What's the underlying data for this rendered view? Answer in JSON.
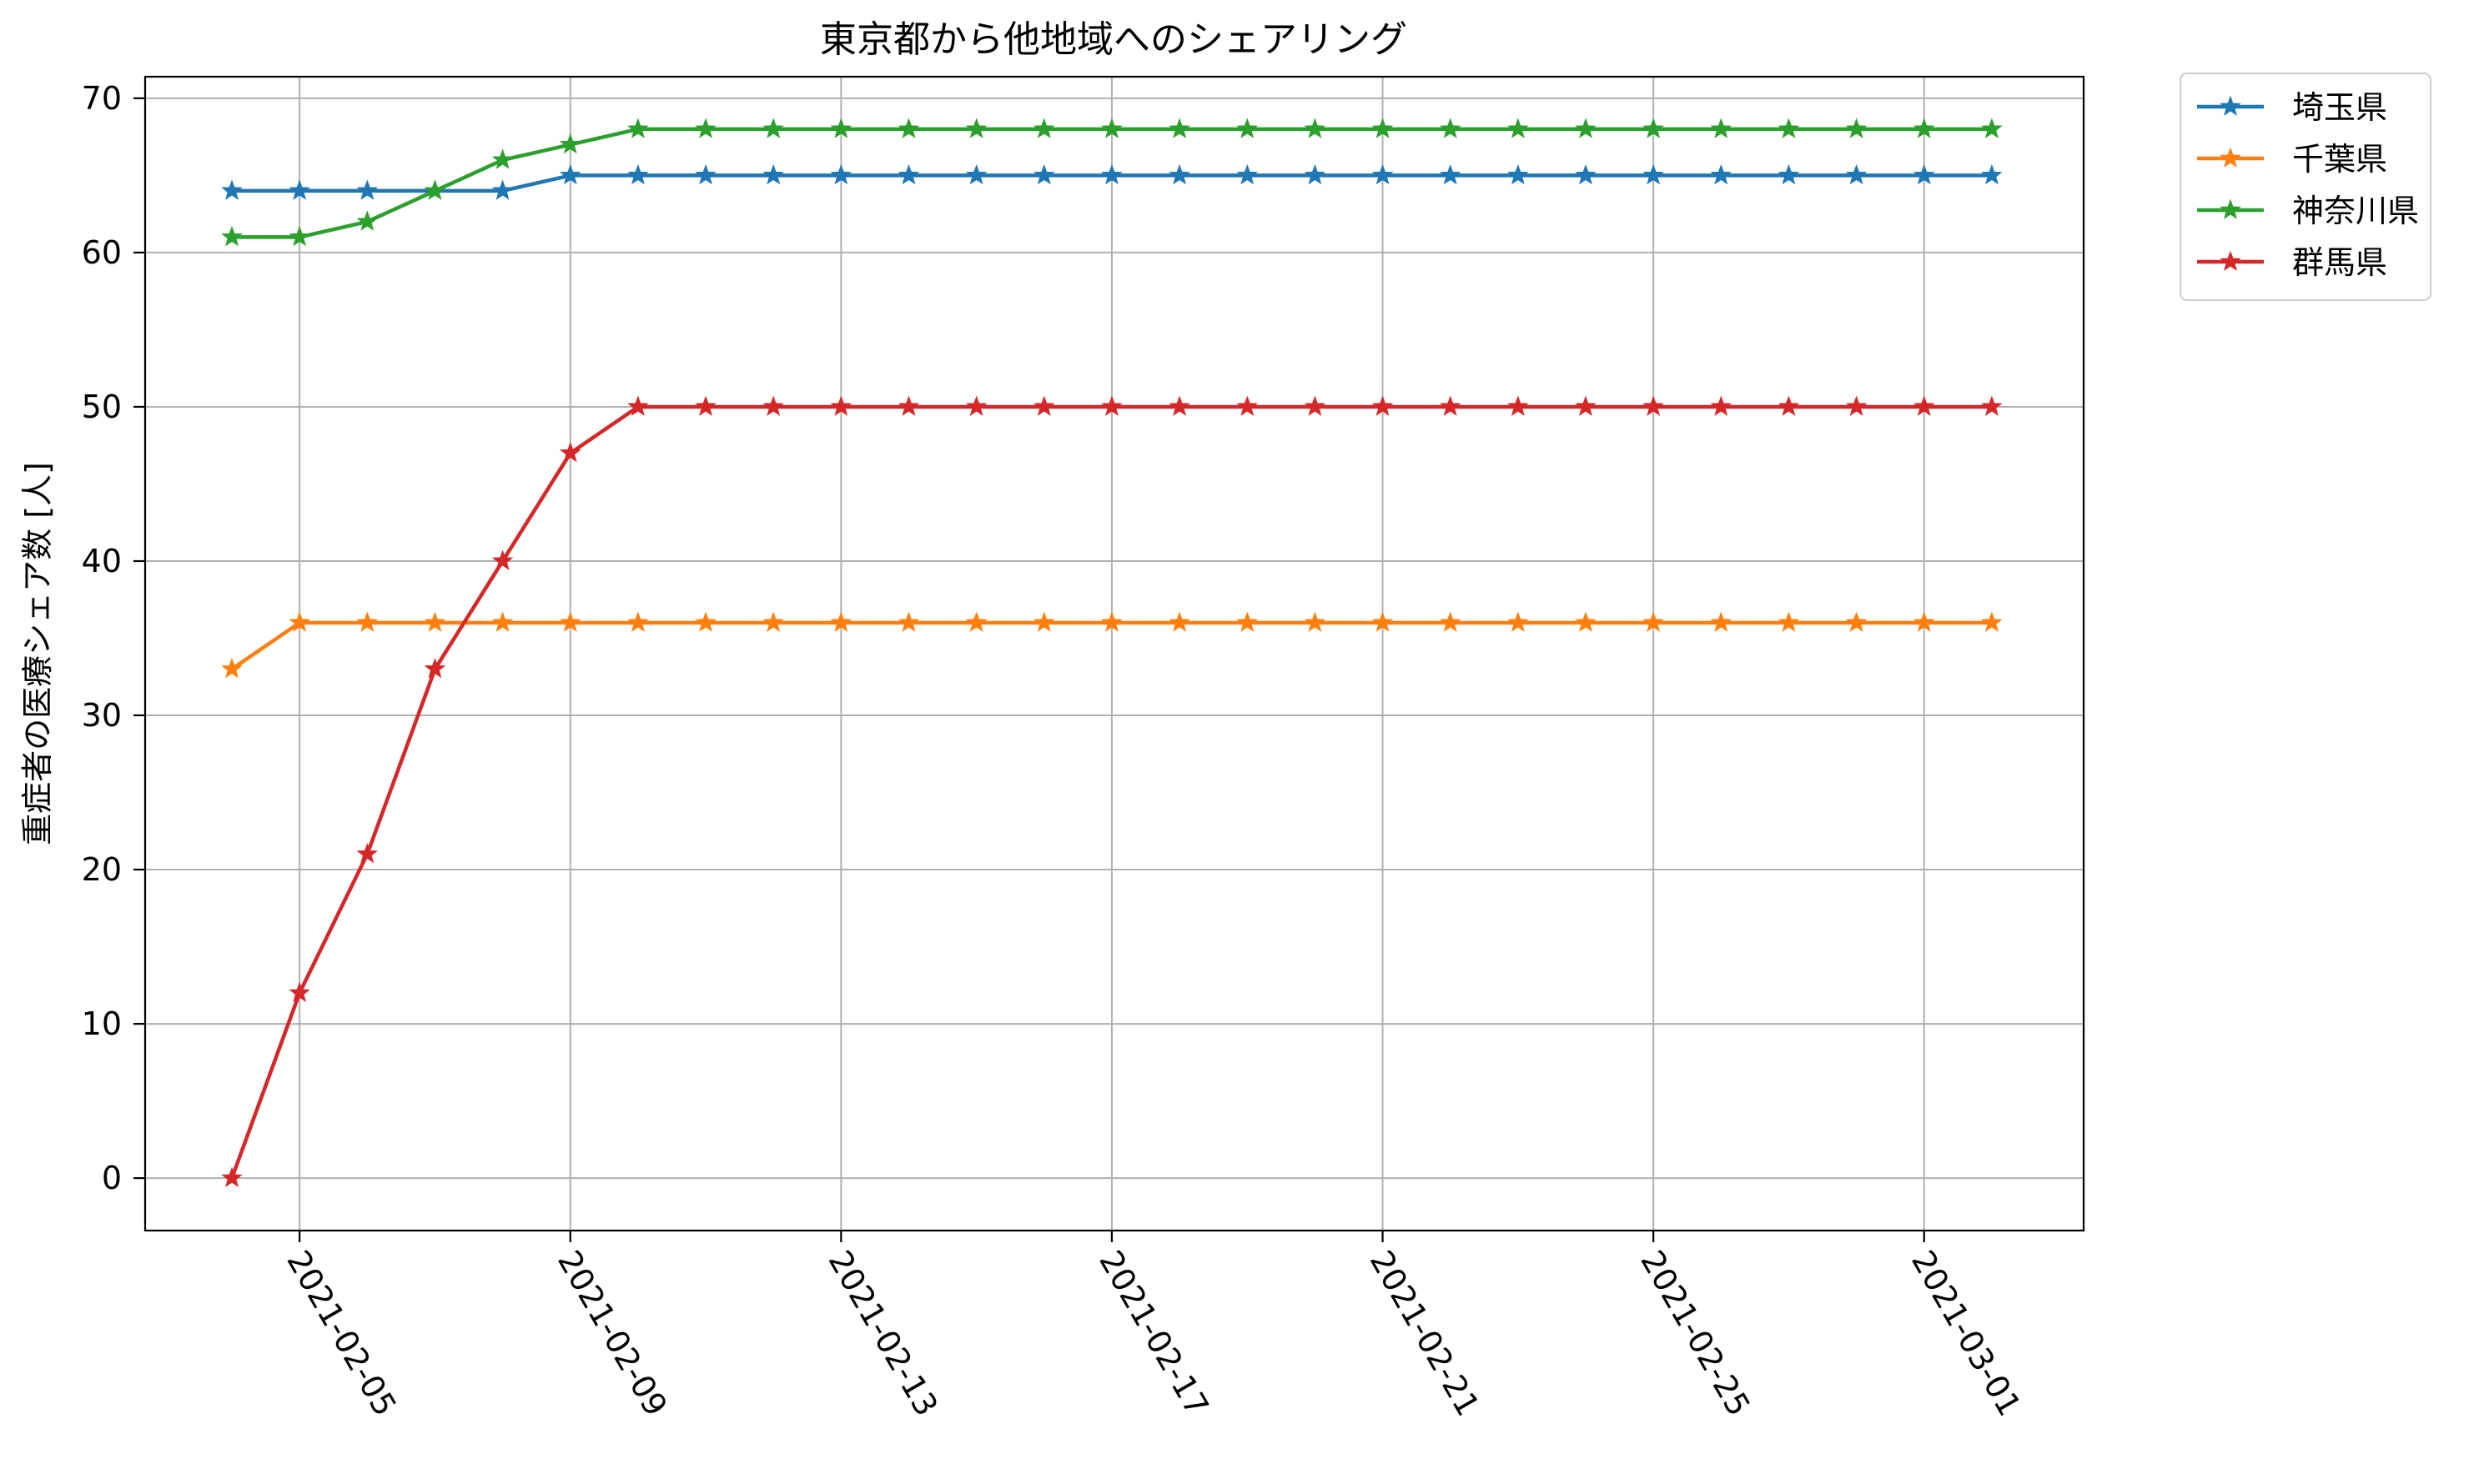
{
  "chart_data": {
    "type": "line",
    "title": "東京都から他地域へのシェアリング",
    "xlabel": "",
    "ylabel": "重症者の医療シェア数 [人]",
    "x": [
      "2021-02-04",
      "2021-02-05",
      "2021-02-06",
      "2021-02-07",
      "2021-02-08",
      "2021-02-09",
      "2021-02-10",
      "2021-02-11",
      "2021-02-12",
      "2021-02-13",
      "2021-02-14",
      "2021-02-15",
      "2021-02-16",
      "2021-02-17",
      "2021-02-18",
      "2021-02-19",
      "2021-02-20",
      "2021-02-21",
      "2021-02-22",
      "2021-02-23",
      "2021-02-24",
      "2021-02-25",
      "2021-02-26",
      "2021-02-27",
      "2021-02-28",
      "2021-03-01",
      "2021-03-02"
    ],
    "xticks": [
      "2021-02-05",
      "2021-02-09",
      "2021-02-13",
      "2021-02-17",
      "2021-02-21",
      "2021-02-25",
      "2021-03-01"
    ],
    "yticks": [
      0,
      10,
      20,
      30,
      40,
      50,
      60,
      70
    ],
    "ylim": [
      -3.4,
      71.4
    ],
    "grid": true,
    "marker": "star",
    "legend_position": "outside-top-right",
    "series": [
      {
        "name": "埼玉県",
        "color": "#1f77b4",
        "values": [
          64,
          64,
          64,
          64,
          64,
          65,
          65,
          65,
          65,
          65,
          65,
          65,
          65,
          65,
          65,
          65,
          65,
          65,
          65,
          65,
          65,
          65,
          65,
          65,
          65,
          65,
          65
        ]
      },
      {
        "name": "千葉県",
        "color": "#ff7f0e",
        "values": [
          33,
          36,
          36,
          36,
          36,
          36,
          36,
          36,
          36,
          36,
          36,
          36,
          36,
          36,
          36,
          36,
          36,
          36,
          36,
          36,
          36,
          36,
          36,
          36,
          36,
          36,
          36
        ]
      },
      {
        "name": "神奈川県",
        "color": "#2ca02c",
        "values": [
          61,
          61,
          62,
          64,
          66,
          67,
          68,
          68,
          68,
          68,
          68,
          68,
          68,
          68,
          68,
          68,
          68,
          68,
          68,
          68,
          68,
          68,
          68,
          68,
          68,
          68,
          68
        ]
      },
      {
        "name": "群馬県",
        "color": "#d62728",
        "values": [
          0,
          12,
          21,
          33,
          40,
          47,
          50,
          50,
          50,
          50,
          50,
          50,
          50,
          50,
          50,
          50,
          50,
          50,
          50,
          50,
          50,
          50,
          50,
          50,
          50,
          50,
          50
        ]
      }
    ]
  }
}
